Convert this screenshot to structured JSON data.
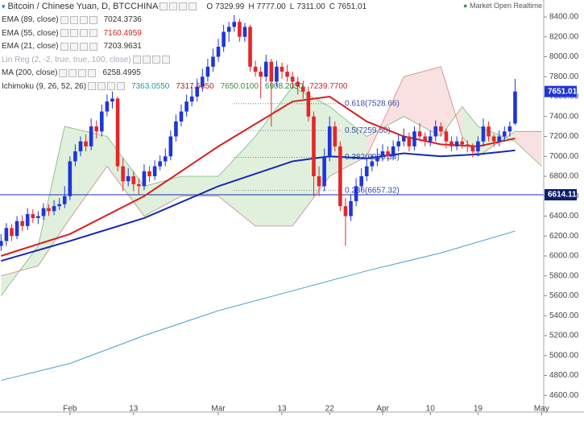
{
  "chart_data": {
    "type": "candlestick",
    "title": "Bitcoin / Chinese Yuan, D, BTCCHINA",
    "status": "Market Open Realtime",
    "ohlc_header": [
      {
        "label": "O",
        "value": "7329.99"
      },
      {
        "label": "H",
        "value": "7777.00"
      },
      {
        "label": "L",
        "value": "7311.00"
      },
      {
        "label": "C",
        "value": "7651.01"
      }
    ],
    "indicators": [
      {
        "name": "EMA (89, close)",
        "value": "7024.3736"
      },
      {
        "name": "EMA (55, close)",
        "value": "7160.4959"
      },
      {
        "name": "EMA (21, close)",
        "value": "7203.9631"
      },
      {
        "name": "Lin Reg (2, -2, true, true, 100, close)"
      },
      {
        "name": "MA (200, close)",
        "value": "6258.4995"
      },
      {
        "name": "Ichimoku (9, 26, 52, 26)"
      }
    ],
    "ichimoku_values": [
      "7363.0550",
      "7317.5050",
      "7650.0100",
      "6908.2050",
      "7239.7700"
    ],
    "up_color": "#1f35d6",
    "down_color": "#e3262a",
    "x": [
      -13,
      -12,
      -11,
      -10,
      -9,
      -8,
      -7,
      -6,
      -5,
      -4,
      -3,
      -2,
      -1,
      0,
      1,
      2,
      3,
      4,
      5,
      6,
      7,
      8,
      9,
      10,
      11,
      12,
      13,
      14,
      15,
      16,
      17,
      18,
      19,
      20,
      21,
      22,
      23,
      24,
      25,
      26,
      27,
      28,
      29,
      30,
      31,
      32,
      33,
      34,
      35,
      36,
      37,
      38,
      39,
      40,
      41,
      42,
      43,
      44,
      45,
      46,
      47,
      48,
      49,
      50,
      51,
      52,
      53,
      54,
      55,
      56,
      57,
      58,
      59,
      60,
      61,
      62,
      63,
      64,
      65,
      66,
      67,
      68,
      69,
      70,
      71,
      72,
      73,
      74,
      75,
      76,
      77,
      78,
      79,
      80,
      81,
      82,
      83,
      84
    ],
    "candles": [
      [
        6100,
        6220,
        6050,
        6150
      ],
      [
        6150,
        6330,
        6100,
        6280
      ],
      [
        6280,
        6320,
        6150,
        6200
      ],
      [
        6200,
        6400,
        6170,
        6350
      ],
      [
        6350,
        6410,
        6250,
        6300
      ],
      [
        6300,
        6480,
        6260,
        6420
      ],
      [
        6420,
        6470,
        6330,
        6380
      ],
      [
        6380,
        6450,
        6320,
        6400
      ],
      [
        6400,
        6530,
        6360,
        6480
      ],
      [
        6480,
        6520,
        6400,
        6450
      ],
      [
        6450,
        6560,
        6410,
        6500
      ],
      [
        6500,
        6580,
        6460,
        6520
      ],
      [
        6520,
        6700,
        6480,
        6600
      ],
      [
        6600,
        7000,
        6560,
        6950
      ],
      [
        6950,
        7120,
        6900,
        7050
      ],
      [
        7050,
        7200,
        7000,
        7150
      ],
      [
        7150,
        7220,
        7050,
        7100
      ],
      [
        7100,
        7380,
        7060,
        7300
      ],
      [
        7300,
        7360,
        7180,
        7250
      ],
      [
        7250,
        7520,
        7200,
        7450
      ],
      [
        7450,
        7620,
        7400,
        7550
      ],
      [
        7550,
        7650,
        7480,
        7580
      ],
      [
        7580,
        7600,
        6850,
        6900
      ],
      [
        6900,
        6980,
        6650,
        6750
      ],
      [
        6750,
        6880,
        6700,
        6800
      ],
      [
        6800,
        6850,
        6650,
        6720
      ],
      [
        6720,
        6780,
        6620,
        6700
      ],
      [
        6700,
        6920,
        6660,
        6850
      ],
      [
        6850,
        6900,
        6740,
        6800
      ],
      [
        6800,
        6960,
        6760,
        6900
      ],
      [
        6900,
        7010,
        6860,
        6950
      ],
      [
        6950,
        7080,
        6900,
        7000
      ],
      [
        7000,
        7260,
        6960,
        7200
      ],
      [
        7200,
        7420,
        7150,
        7350
      ],
      [
        7350,
        7520,
        7300,
        7450
      ],
      [
        7450,
        7620,
        7400,
        7550
      ],
      [
        7550,
        7700,
        7500,
        7600
      ],
      [
        7600,
        7780,
        7550,
        7700
      ],
      [
        7700,
        7880,
        7650,
        7800
      ],
      [
        7800,
        7980,
        7750,
        7900
      ],
      [
        7900,
        8080,
        7850,
        8000
      ],
      [
        8000,
        8180,
        7950,
        8100
      ],
      [
        8100,
        8320,
        8050,
        8250
      ],
      [
        8250,
        8350,
        8150,
        8300
      ],
      [
        8300,
        8420,
        8250,
        8350
      ],
      [
        8350,
        8380,
        8150,
        8200
      ],
      [
        8200,
        8340,
        8150,
        8300
      ],
      [
        8300,
        8320,
        7850,
        7900
      ],
      [
        7900,
        7960,
        7800,
        7850
      ],
      [
        7850,
        7900,
        7580,
        7800
      ],
      [
        7800,
        8020,
        7750,
        7950
      ],
      [
        7950,
        7980,
        7300,
        7750
      ],
      [
        7750,
        7960,
        7700,
        7900
      ],
      [
        7900,
        7940,
        7780,
        7850
      ],
      [
        7850,
        7920,
        7750,
        7800
      ],
      [
        7800,
        7850,
        7680,
        7750
      ],
      [
        7750,
        7800,
        7620,
        7700
      ],
      [
        7700,
        7760,
        7580,
        7650
      ],
      [
        7650,
        7700,
        7350,
        7400
      ],
      [
        7400,
        7450,
        6600,
        6800
      ],
      [
        6800,
        6900,
        6600,
        6700
      ],
      [
        6700,
        7080,
        6650,
        7000
      ],
      [
        7000,
        7400,
        6950,
        7300
      ],
      [
        7300,
        7350,
        7050,
        7100
      ],
      [
        7100,
        7150,
        6450,
        6500
      ],
      [
        6500,
        6580,
        6100,
        6400
      ],
      [
        6400,
        6620,
        6350,
        6550
      ],
      [
        6550,
        6780,
        6500,
        6700
      ],
      [
        6700,
        6880,
        6650,
        6800
      ],
      [
        6800,
        6980,
        6750,
        6900
      ],
      [
        6900,
        7020,
        6850,
        6950
      ],
      [
        6950,
        7080,
        6900,
        7000
      ],
      [
        7000,
        7120,
        6950,
        7050
      ],
      [
        7050,
        7100,
        6950,
        7000
      ],
      [
        7000,
        7160,
        6960,
        7100
      ],
      [
        7100,
        7220,
        7050,
        7150
      ],
      [
        7150,
        7280,
        7100,
        7200
      ],
      [
        7200,
        7240,
        7050,
        7100
      ],
      [
        7100,
        7300,
        7060,
        7250
      ],
      [
        7250,
        7330,
        7150,
        7200
      ],
      [
        7200,
        7240,
        7100,
        7150
      ],
      [
        7150,
        7260,
        7100,
        7200
      ],
      [
        7200,
        7360,
        7150,
        7300
      ],
      [
        7300,
        7340,
        7200,
        7250
      ],
      [
        7250,
        7280,
        7080,
        7150
      ],
      [
        7150,
        7200,
        7050,
        7100
      ],
      [
        7100,
        7200,
        7060,
        7150
      ],
      [
        7150,
        7190,
        7080,
        7120
      ],
      [
        7120,
        7160,
        7040,
        7100
      ],
      [
        7100,
        7130,
        6990,
        7050
      ],
      [
        7050,
        7200,
        7000,
        7150
      ],
      [
        7150,
        7380,
        7100,
        7300
      ],
      [
        7300,
        7350,
        7150,
        7200
      ],
      [
        7200,
        7220,
        7100,
        7150
      ],
      [
        7150,
        7260,
        7100,
        7200
      ],
      [
        7200,
        7300,
        7150,
        7250
      ],
      [
        7250,
        7350,
        7200,
        7300
      ],
      [
        7329.99,
        7777,
        7311,
        7651.01
      ]
    ],
    "lines": [
      {
        "name": "MA (200, close)",
        "color": "#4a9ec9",
        "width": 1,
        "x": [
          -13,
          0,
          14,
          28,
          42,
          56,
          70,
          84
        ],
        "values": [
          4750,
          4920,
          5200,
          5450,
          5650,
          5850,
          6030,
          6250
        ]
      },
      {
        "name": "EMA (89, close)",
        "color": "#1428b4",
        "width": 2,
        "x": [
          -13,
          0,
          14,
          28,
          42,
          49,
          56,
          63,
          70,
          77,
          84
        ],
        "values": [
          5950,
          6150,
          6380,
          6700,
          6950,
          7000,
          6980,
          7030,
          7000,
          7020,
          7060
        ]
      },
      {
        "name": "EMA (55, close)",
        "color": "#d62020",
        "width": 2,
        "x": [
          -13,
          0,
          14,
          28,
          42,
          49,
          56,
          63,
          70,
          77,
          84
        ],
        "values": [
          6000,
          6220,
          6600,
          7100,
          7550,
          7600,
          7350,
          7200,
          7120,
          7100,
          7180
        ]
      }
    ],
    "cloud": {
      "x": [
        -13,
        -6,
        -1,
        7,
        14,
        21,
        28,
        35,
        42,
        49,
        56,
        63,
        70,
        74,
        77,
        84,
        89
      ],
      "span_a": [
        5600,
        6100,
        7300,
        7200,
        6700,
        6800,
        6800,
        7200,
        7700,
        7500,
        7200,
        7400,
        7200,
        7500,
        7300,
        7150,
        6900
      ],
      "span_b": [
        5800,
        5900,
        6300,
        6900,
        6400,
        6600,
        6600,
        6300,
        6300,
        6800,
        7000,
        7800,
        7900,
        7200,
        7000,
        7250,
        7250
      ]
    },
    "fib_levels": [
      {
        "value": 7528.66,
        "label": "0.618(7528.66)"
      },
      {
        "value": 7259.5,
        "label": "0.5(7259.50)"
      },
      {
        "value": 6990.34,
        "label": "0.382(6990.34)"
      },
      {
        "value": 6657.32,
        "label": "0.236(6657.32)"
      }
    ],
    "hline": 6614.11,
    "ylim": [
      4480,
      8520
    ],
    "yticks": [
      {
        "value": 8400,
        "label": "8400.00"
      },
      {
        "value": 8200,
        "label": "8200.00"
      },
      {
        "value": 8000,
        "label": "8000.00"
      },
      {
        "value": 7800,
        "label": "7800.00"
      },
      {
        "value": 7600,
        "label": "7600.00"
      },
      {
        "value": 7400,
        "label": "7400.00"
      },
      {
        "value": 7200,
        "label": "7200.00"
      },
      {
        "value": 7000,
        "label": "7000.00"
      },
      {
        "value": 6800,
        "label": "6800.00"
      },
      {
        "value": 6600,
        "label": "6600.00"
      },
      {
        "value": 6400,
        "label": "6400.00"
      },
      {
        "value": 6200,
        "label": "6200.00"
      },
      {
        "value": 6000,
        "label": "6000.00"
      },
      {
        "value": 5800,
        "label": "5800.00"
      },
      {
        "value": 5600,
        "label": "5600.00"
      },
      {
        "value": 5400,
        "label": "5400.00"
      },
      {
        "value": 5200,
        "label": "5200.00"
      },
      {
        "value": 5000,
        "label": "5000.00"
      },
      {
        "value": 4800,
        "label": "4800.00"
      },
      {
        "value": 4600,
        "label": "4600.00"
      }
    ],
    "xlim": [
      -13.2,
      89.4
    ],
    "xticks": [
      {
        "value": 0,
        "label": "Feb"
      },
      {
        "value": 12,
        "label": "13"
      },
      {
        "value": 28,
        "label": "Mar"
      },
      {
        "value": 40,
        "label": "13"
      },
      {
        "value": 49,
        "label": "22"
      },
      {
        "value": 59,
        "label": "Apr"
      },
      {
        "value": 68,
        "label": "10"
      },
      {
        "value": 77,
        "label": "19"
      },
      {
        "value": 89,
        "label": "May"
      }
    ]
  }
}
